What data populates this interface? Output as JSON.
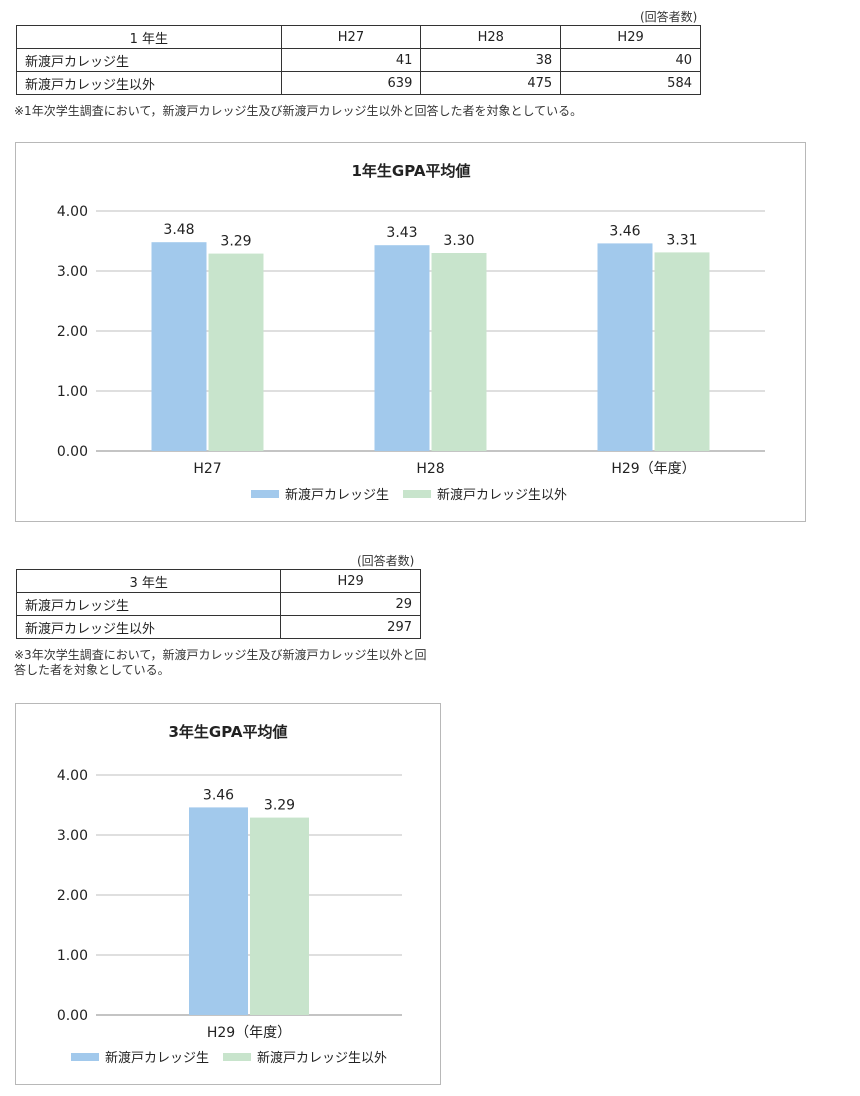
{
  "colors": {
    "series1": "#a2c9ec",
    "series2": "#c8e4cc",
    "grid": "#bfbfbf",
    "axis": "#888888"
  },
  "table1": {
    "unit": "(回答者数)",
    "header": [
      "1 年生",
      "H27",
      "H28",
      "H29"
    ],
    "rows": [
      {
        "label": "新渡戸カレッジ生",
        "values": [
          "41",
          "38",
          "40"
        ]
      },
      {
        "label": "新渡戸カレッジ生以外",
        "values": [
          "639",
          "475",
          "584"
        ]
      }
    ],
    "note": "※1年次学生調査において，新渡戸カレッジ生及び新渡戸カレッジ生以外と回答した者を対象としている。"
  },
  "table3": {
    "unit": "(回答者数)",
    "header": [
      "3 年生",
      "H29"
    ],
    "rows": [
      {
        "label": "新渡戸カレッジ生",
        "values": [
          "29"
        ]
      },
      {
        "label": "新渡戸カレッジ生以外",
        "values": [
          "297"
        ]
      }
    ],
    "note_line1": "※3年次学生調査において，新渡戸カレッジ生及び新渡戸カレッジ生以外と回答した者を対象としている。",
    "note_line2": ""
  },
  "chart_data": [
    {
      "type": "bar",
      "title": "1年生GPA平均値",
      "categories": [
        "H27",
        "H28",
        "H29（年度）"
      ],
      "series": [
        {
          "name": "新渡戸カレッジ生",
          "values": [
            3.48,
            3.43,
            3.46
          ],
          "labels": [
            "3.48",
            "3.43",
            "3.46"
          ]
        },
        {
          "name": "新渡戸カレッジ生以外",
          "values": [
            3.29,
            3.3,
            3.31
          ],
          "labels": [
            "3.29",
            "3.30",
            "3.31"
          ]
        }
      ],
      "yticks": [
        "0.00",
        "1.00",
        "2.00",
        "3.00",
        "4.00"
      ],
      "ylim": [
        0,
        4
      ],
      "grid": true,
      "legend": "bottom"
    },
    {
      "type": "bar",
      "title": "3年生GPA平均値",
      "categories": [
        "H29（年度）"
      ],
      "series": [
        {
          "name": "新渡戸カレッジ生",
          "values": [
            3.46
          ],
          "labels": [
            "3.46"
          ]
        },
        {
          "name": "新渡戸カレッジ生以外",
          "values": [
            3.29
          ],
          "labels": [
            "3.29"
          ]
        }
      ],
      "yticks": [
        "0.00",
        "1.00",
        "2.00",
        "3.00",
        "4.00"
      ],
      "ylim": [
        0,
        4
      ],
      "grid": true,
      "legend": "bottom"
    }
  ]
}
